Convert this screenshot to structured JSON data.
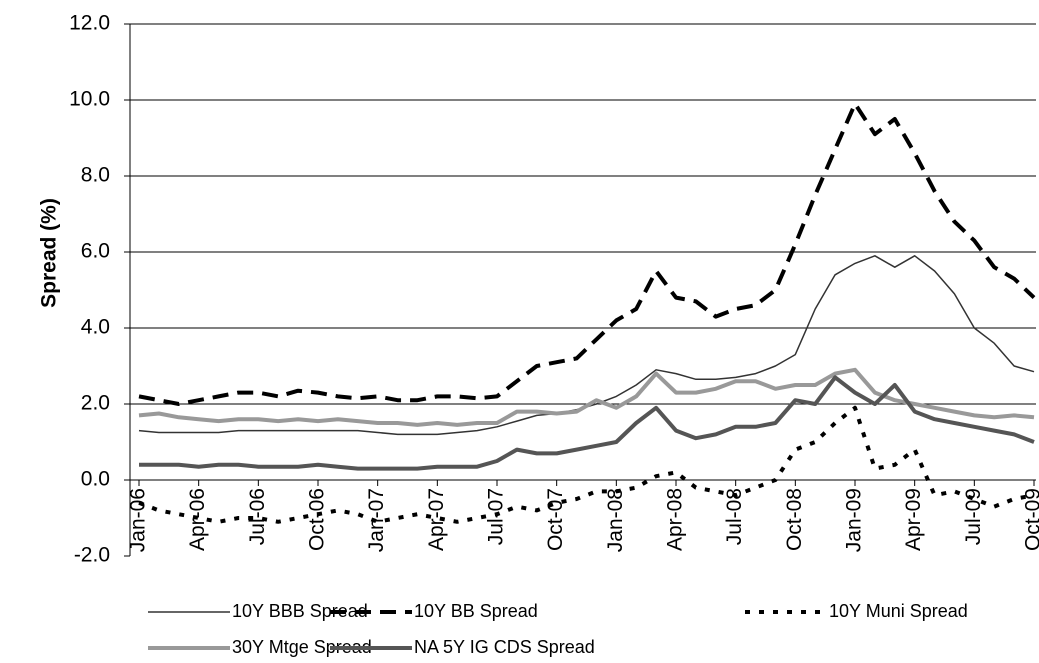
{
  "chart_data": {
    "type": "line",
    "y_label": "Spread (%)",
    "categories": [
      "Jan-06",
      null,
      null,
      "Apr-06",
      null,
      null,
      "Jul-06",
      null,
      null,
      "Oct-06",
      null,
      null,
      "Jan-07",
      null,
      null,
      "Apr-07",
      null,
      null,
      "Jul-07",
      null,
      null,
      "Oct-07",
      null,
      null,
      "Jan-08",
      null,
      null,
      "Apr-08",
      null,
      null,
      "Jul-08",
      null,
      null,
      "Oct-08",
      null,
      null,
      "Jan-09",
      null,
      null,
      "Apr-09",
      null,
      null,
      "Jul-09",
      null,
      null,
      "Oct-09"
    ],
    "series": [
      {
        "name": "10Y BBB Spread",
        "color": "#333333",
        "width": 1.5,
        "dash": "none",
        "values": [
          1.3,
          1.25,
          1.25,
          1.25,
          1.25,
          1.3,
          1.3,
          1.3,
          1.3,
          1.3,
          1.3,
          1.3,
          1.25,
          1.2,
          1.2,
          1.2,
          1.25,
          1.3,
          1.4,
          1.55,
          1.7,
          1.75,
          1.85,
          2.0,
          2.2,
          2.5,
          2.9,
          2.8,
          2.65,
          2.65,
          2.7,
          2.8,
          3.0,
          3.3,
          4.5,
          5.4,
          5.7,
          5.9,
          5.6,
          5.9,
          5.5,
          4.9,
          4.0,
          3.6,
          3.0,
          2.85
        ]
      },
      {
        "name": "10Y BB Spread",
        "color": "#000000",
        "width": 4,
        "dash": "16,9",
        "values": [
          2.2,
          2.1,
          2.0,
          2.1,
          2.2,
          2.3,
          2.3,
          2.2,
          2.35,
          2.3,
          2.2,
          2.15,
          2.2,
          2.1,
          2.1,
          2.2,
          2.2,
          2.15,
          2.2,
          2.6,
          3.0,
          3.1,
          3.2,
          3.7,
          4.2,
          4.5,
          5.5,
          4.8,
          4.7,
          4.3,
          4.5,
          4.6,
          5.0,
          6.2,
          7.5,
          8.7,
          9.9,
          9.1,
          9.5,
          8.6,
          7.6,
          6.8,
          6.3,
          5.6,
          5.3,
          4.8
        ]
      },
      {
        "name": "10Y Muni Spread",
        "color": "#000000",
        "width": 4,
        "dash": "5,9",
        "values": [
          -0.6,
          -0.8,
          -0.9,
          -1.0,
          -1.1,
          -1.0,
          -1.0,
          -1.1,
          -1.0,
          -0.9,
          -0.8,
          -0.9,
          -1.1,
          -1.0,
          -0.9,
          -1.0,
          -1.1,
          -1.0,
          -0.9,
          -0.7,
          -0.8,
          -0.6,
          -0.5,
          -0.3,
          -0.3,
          -0.2,
          0.1,
          0.2,
          -0.2,
          -0.3,
          -0.4,
          -0.2,
          0.0,
          0.8,
          1.0,
          1.5,
          1.9,
          0.3,
          0.4,
          0.8,
          -0.4,
          -0.3,
          -0.5,
          -0.7,
          -0.5,
          -0.4
        ]
      },
      {
        "name": "30Y Mtge Spread",
        "color": "#999999",
        "width": 4,
        "dash": "none",
        "values": [
          1.7,
          1.75,
          1.65,
          1.6,
          1.55,
          1.6,
          1.6,
          1.55,
          1.6,
          1.55,
          1.6,
          1.55,
          1.5,
          1.5,
          1.45,
          1.5,
          1.45,
          1.5,
          1.5,
          1.8,
          1.8,
          1.75,
          1.8,
          2.1,
          1.9,
          2.2,
          2.8,
          2.3,
          2.3,
          2.4,
          2.6,
          2.6,
          2.4,
          2.5,
          2.5,
          2.8,
          2.9,
          2.3,
          2.1,
          2.0,
          1.9,
          1.8,
          1.7,
          1.65,
          1.7,
          1.65
        ]
      },
      {
        "name": "NA 5Y IG CDS Spread",
        "color": "#555555",
        "width": 4,
        "dash": "none",
        "values": [
          0.4,
          0.4,
          0.4,
          0.35,
          0.4,
          0.4,
          0.35,
          0.35,
          0.35,
          0.4,
          0.35,
          0.3,
          0.3,
          0.3,
          0.3,
          0.35,
          0.35,
          0.35,
          0.5,
          0.8,
          0.7,
          0.7,
          0.8,
          0.9,
          1.0,
          1.5,
          1.9,
          1.3,
          1.1,
          1.2,
          1.4,
          1.4,
          1.5,
          2.1,
          2.0,
          2.7,
          2.3,
          2.0,
          2.5,
          1.8,
          1.6,
          1.5,
          1.4,
          1.3,
          1.2,
          1.0
        ]
      }
    ],
    "ylim": [
      -2,
      12
    ],
    "yticks": [
      {
        "value": -2,
        "label": "-2.0"
      },
      {
        "value": 0,
        "label": "0.0"
      },
      {
        "value": 2,
        "label": "2.0"
      },
      {
        "value": 4,
        "label": "4.0"
      },
      {
        "value": 6,
        "label": "6.0"
      },
      {
        "value": 8,
        "label": "8.0"
      },
      {
        "value": 10,
        "label": "10.0"
      },
      {
        "value": 12,
        "label": "12.0"
      }
    ],
    "grid": true
  }
}
